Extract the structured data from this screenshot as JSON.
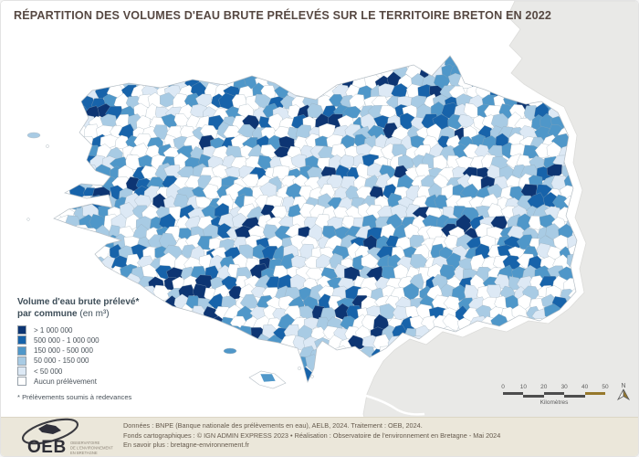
{
  "title": "RÉPARTITION DES VOLUMES D'EAU BRUTE PRÉLEVÉS SUR LE TERRITOIRE BRETON EN 2022",
  "legend": {
    "title_line1": "Volume d'eau brute prélevé*",
    "title_line2_bold": "par commune",
    "title_line2_unit": "(en m³)",
    "items": [
      {
        "label": "> 1 000 000",
        "color": "#0d3573"
      },
      {
        "label": "500 000 - 1 000 000",
        "color": "#1763aa"
      },
      {
        "label": "150 000 - 500 000",
        "color": "#4f97c9"
      },
      {
        "label": "50 000 - 150 000",
        "color": "#a8cbe4"
      },
      {
        "label": "< 50 000",
        "color": "#dde9f5"
      },
      {
        "label": "Aucun prélèvement",
        "color": "#ffffff"
      }
    ],
    "footnote": "* Prélèvements soumis à redevances"
  },
  "scalebar": {
    "ticks": [
      "0",
      "10",
      "20",
      "30",
      "40",
      "50"
    ],
    "unit": "Kilomètres"
  },
  "north": {
    "label": "N"
  },
  "map": {
    "sea_color": "#ffffff",
    "neighbor_color": "#e9e9e7",
    "boundary_color": "#b6bfc6",
    "accent_gold": "#96782b",
    "class_weights_navy_to_white": [
      0.055,
      0.085,
      0.16,
      0.19,
      0.135,
      0.375
    ]
  },
  "footer": {
    "logo_text": "OEB",
    "logo_caption": [
      "OBSERVATOIRE",
      "DE L'ENVIRONNEMENT",
      "EN BRETAGNE"
    ],
    "line1": "Données : BNPE (Banque nationale des prélèvements en eau), AELB, 2024. Traitement : OEB, 2024.",
    "line2": "Fonds cartographiques : © IGN ADMIN EXPRESS 2023 • Réalisation : Observatoire de l'environnement en Bretagne - Mai 2024",
    "line3": "En savoir plus : bretagne-environnement.fr"
  }
}
